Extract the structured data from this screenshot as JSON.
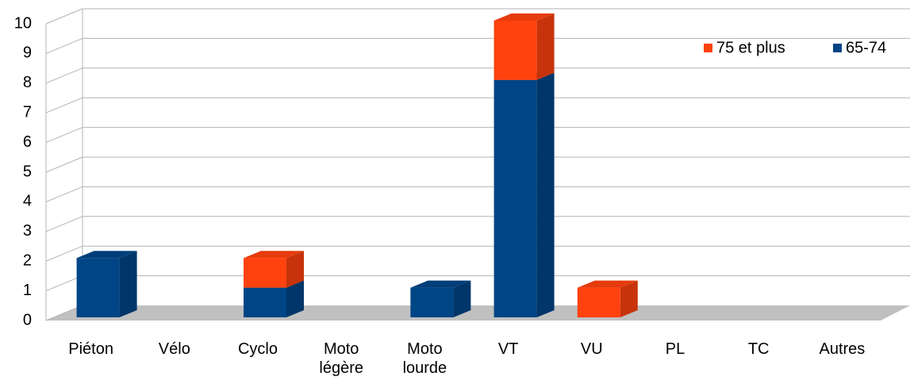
{
  "chart_data": {
    "type": "bar3d_stacked",
    "categories": [
      "Piéton",
      "Vélo",
      "Cyclo",
      "Moto légère",
      "Moto lourde",
      "VT",
      "VU",
      "PL",
      "TC",
      "Autres"
    ],
    "series": [
      {
        "name": "65-74",
        "color": "#004586",
        "values": [
          2,
          0,
          1,
          0,
          1,
          8,
          0,
          0,
          0,
          0
        ]
      },
      {
        "name": "75 et plus",
        "color": "#ff420e",
        "values": [
          0,
          0,
          1,
          0,
          0,
          2,
          1,
          0,
          0,
          0
        ]
      }
    ],
    "ylim": [
      0,
      10
    ],
    "yticks": [
      0,
      1,
      2,
      3,
      4,
      5,
      6,
      7,
      8,
      9,
      10
    ],
    "grid": true,
    "legend": "top-right"
  }
}
